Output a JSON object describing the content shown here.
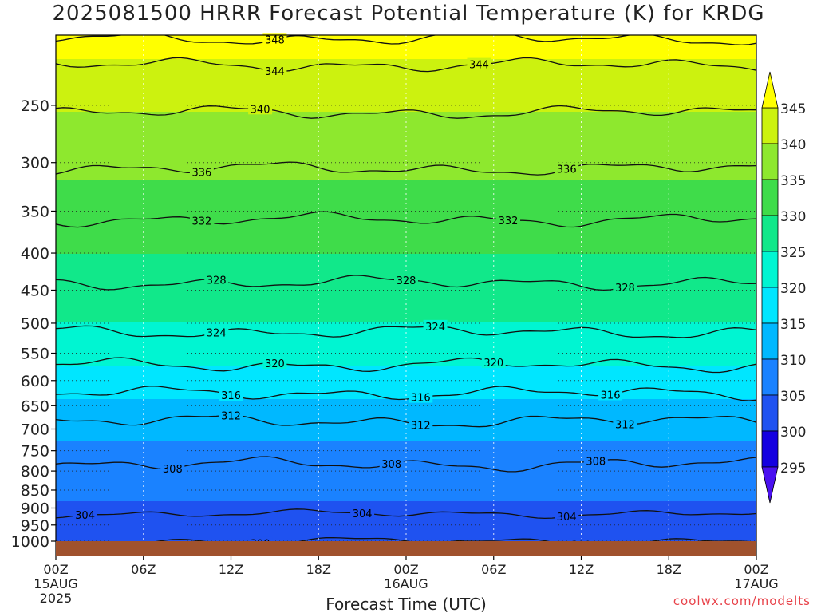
{
  "title": "2025081500 HRRR Forecast Potential Temperature (K) for KRDG",
  "credit": "coolwx.com/modelts",
  "chart_data": {
    "type": "heatmap",
    "title": "2025081500 HRRR Forecast Potential Temperature (K) for KRDG",
    "xlabel": "Forecast Time (UTC)",
    "ylabel": "",
    "x_range_hours": [
      0,
      48
    ],
    "y_range_hPa": [
      1000,
      200
    ],
    "y_scale": "log",
    "grid": true,
    "x_ticks": [
      {
        "hour": 0,
        "label": "00Z",
        "sub": [
          "15AUG",
          "2025"
        ]
      },
      {
        "hour": 6,
        "label": "06Z",
        "sub": []
      },
      {
        "hour": 12,
        "label": "12Z",
        "sub": []
      },
      {
        "hour": 18,
        "label": "18Z",
        "sub": []
      },
      {
        "hour": 24,
        "label": "00Z",
        "sub": [
          "16AUG"
        ]
      },
      {
        "hour": 30,
        "label": "06Z",
        "sub": []
      },
      {
        "hour": 36,
        "label": "12Z",
        "sub": []
      },
      {
        "hour": 42,
        "label": "18Z",
        "sub": []
      },
      {
        "hour": 48,
        "label": "00Z",
        "sub": [
          "17AUG"
        ]
      }
    ],
    "y_ticks": [
      250,
      300,
      350,
      400,
      450,
      500,
      550,
      600,
      650,
      700,
      750,
      800,
      850,
      900,
      950,
      1000
    ],
    "colorbar": {
      "labels": [
        345,
        340,
        335,
        330,
        325,
        320,
        315,
        310,
        305,
        300,
        295
      ],
      "bins": [
        {
          "lo": 345,
          "hi": 350,
          "color": "#ffff00"
        },
        {
          "lo": 340,
          "hi": 345,
          "color": "#ccf20f"
        },
        {
          "lo": 335,
          "hi": 340,
          "color": "#8ee82e"
        },
        {
          "lo": 330,
          "hi": 335,
          "color": "#3fdc4a"
        },
        {
          "lo": 325,
          "hi": 330,
          "color": "#11e88a"
        },
        {
          "lo": 320,
          "hi": 325,
          "color": "#00f5d2"
        },
        {
          "lo": 315,
          "hi": 320,
          "color": "#00e6ff"
        },
        {
          "lo": 310,
          "hi": 315,
          "color": "#00b8ff"
        },
        {
          "lo": 305,
          "hi": 310,
          "color": "#1a82ff"
        },
        {
          "lo": 300,
          "hi": 305,
          "color": "#1f52f0"
        },
        {
          "lo": 295,
          "hi": 300,
          "color": "#1400e0"
        },
        {
          "lo": 290,
          "hi": 295,
          "color": "#4a10f0"
        }
      ],
      "top_arrow_color": "#ffff00",
      "bottom_arrow_color": "#4a10f0"
    },
    "ground_color": "#a0522d",
    "profile": [
      {
        "p": 1000,
        "theta": 300.5
      },
      {
        "p": 975,
        "theta": 302.0
      },
      {
        "p": 950,
        "theta": 303.0
      },
      {
        "p": 900,
        "theta": 304.5
      },
      {
        "p": 850,
        "theta": 306.0
      },
      {
        "p": 800,
        "theta": 307.5
      },
      {
        "p": 750,
        "theta": 309.0
      },
      {
        "p": 700,
        "theta": 311.0
      },
      {
        "p": 650,
        "theta": 314.0
      },
      {
        "p": 600,
        "theta": 318.0
      },
      {
        "p": 550,
        "theta": 321.5
      },
      {
        "p": 500,
        "theta": 325.0
      },
      {
        "p": 450,
        "theta": 327.5
      },
      {
        "p": 400,
        "theta": 330.0
      },
      {
        "p": 350,
        "theta": 332.5
      },
      {
        "p": 300,
        "theta": 336.5
      },
      {
        "p": 250,
        "theta": 340.5
      },
      {
        "p": 220,
        "theta": 344.0
      },
      {
        "p": 200,
        "theta": 348.5
      }
    ],
    "contour_levels": [
      300,
      304,
      308,
      312,
      316,
      320,
      324,
      328,
      332,
      336,
      340,
      344,
      348
    ],
    "contour_labels": [
      {
        "value": 348,
        "hour": 15
      },
      {
        "value": 344,
        "hour": 15
      },
      {
        "value": 344,
        "hour": 29
      },
      {
        "value": 340,
        "hour": 14
      },
      {
        "value": 336,
        "hour": 10
      },
      {
        "value": 336,
        "hour": 35
      },
      {
        "value": 332,
        "hour": 10
      },
      {
        "value": 332,
        "hour": 31
      },
      {
        "value": 328,
        "hour": 11
      },
      {
        "value": 328,
        "hour": 24
      },
      {
        "value": 328,
        "hour": 39
      },
      {
        "value": 324,
        "hour": 11
      },
      {
        "value": 324,
        "hour": 26
      },
      {
        "value": 320,
        "hour": 15
      },
      {
        "value": 320,
        "hour": 30
      },
      {
        "value": 316,
        "hour": 12
      },
      {
        "value": 316,
        "hour": 25
      },
      {
        "value": 316,
        "hour": 38
      },
      {
        "value": 312,
        "hour": 12
      },
      {
        "value": 312,
        "hour": 25
      },
      {
        "value": 312,
        "hour": 39
      },
      {
        "value": 308,
        "hour": 8
      },
      {
        "value": 308,
        "hour": 23
      },
      {
        "value": 308,
        "hour": 37
      },
      {
        "value": 304,
        "hour": 2
      },
      {
        "value": 304,
        "hour": 21
      },
      {
        "value": 304,
        "hour": 35
      },
      {
        "value": 300,
        "hour": 14
      },
      {
        "value": 300,
        "hour": 36
      }
    ]
  }
}
